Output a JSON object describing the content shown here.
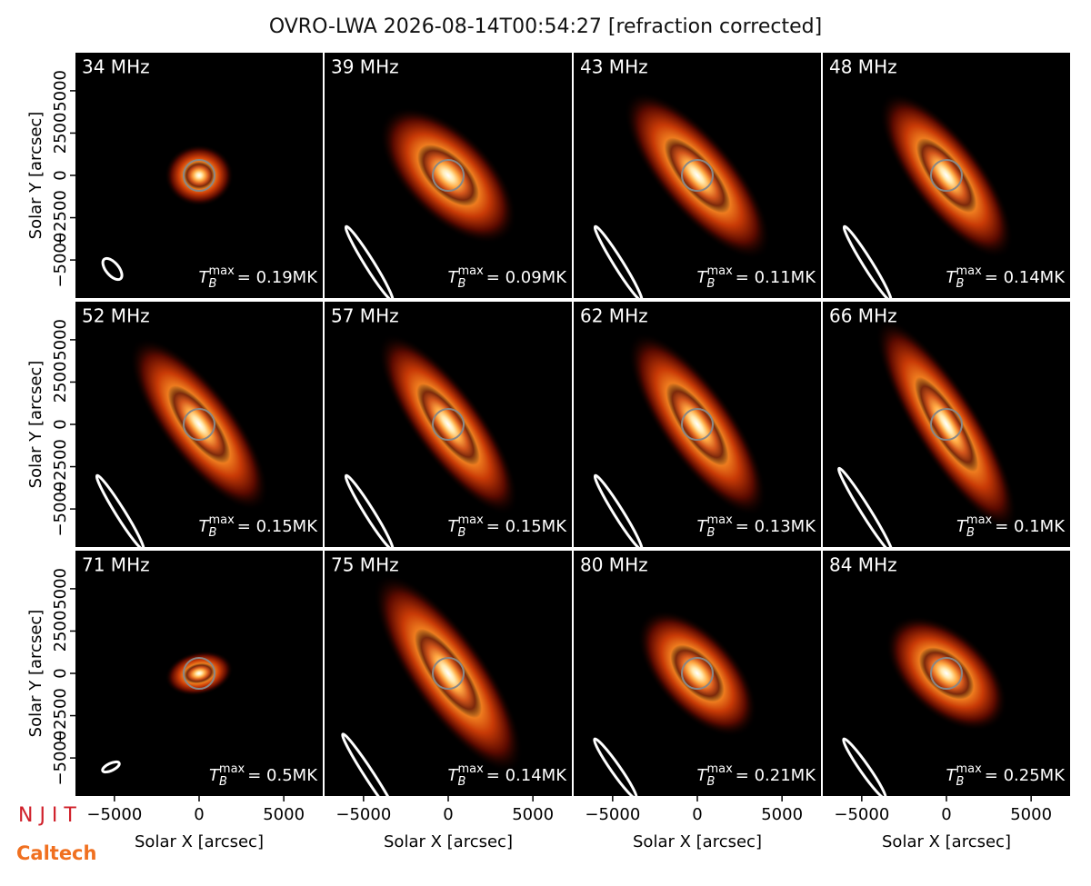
{
  "chart_data": {
    "type": "image_grid",
    "title": "OVRO-LWA 2026-08-14T00:54:27 [refraction corrected]",
    "xlabel": "Solar X [arcsec]",
    "ylabel": "Solar Y [arcsec]",
    "xlim": [
      -7300,
      7300
    ],
    "ylim": [
      -7250,
      7250
    ],
    "xticks": [
      {
        "value": -5000,
        "label": "−5000"
      },
      0,
      5000
    ],
    "yticks": [
      {
        "value": -5000,
        "label": "−5000"
      },
      {
        "value": -2500,
        "label": "−2500"
      },
      0,
      2500,
      5000
    ],
    "tb_symbol": {
      "base": "T",
      "sub": "B",
      "sup": "max"
    },
    "panels": [
      {
        "title": "34 MHz",
        "annotation": "= 0.19MK"
      },
      {
        "title": "39 MHz",
        "annotation": "= 0.09MK"
      },
      {
        "title": "43 MHz",
        "annotation": "= 0.11MK"
      },
      {
        "title": "48 MHz",
        "annotation": "= 0.14MK"
      },
      {
        "title": "52 MHz",
        "annotation": "= 0.15MK"
      },
      {
        "title": "57 MHz",
        "annotation": "= 0.15MK"
      },
      {
        "title": "62 MHz",
        "annotation": "= 0.13MK"
      },
      {
        "title": "66 MHz",
        "annotation": "= 0.1MK"
      },
      {
        "title": "71 MHz",
        "annotation": "= 0.5MK"
      },
      {
        "title": "75 MHz",
        "annotation": "= 0.14MK"
      },
      {
        "title": "80 MHz",
        "annotation": "= 0.21MK"
      },
      {
        "title": "84 MHz",
        "annotation": "= 0.25MK"
      }
    ]
  },
  "logos": {
    "njit": "N J I T",
    "caltech": "Caltech"
  }
}
